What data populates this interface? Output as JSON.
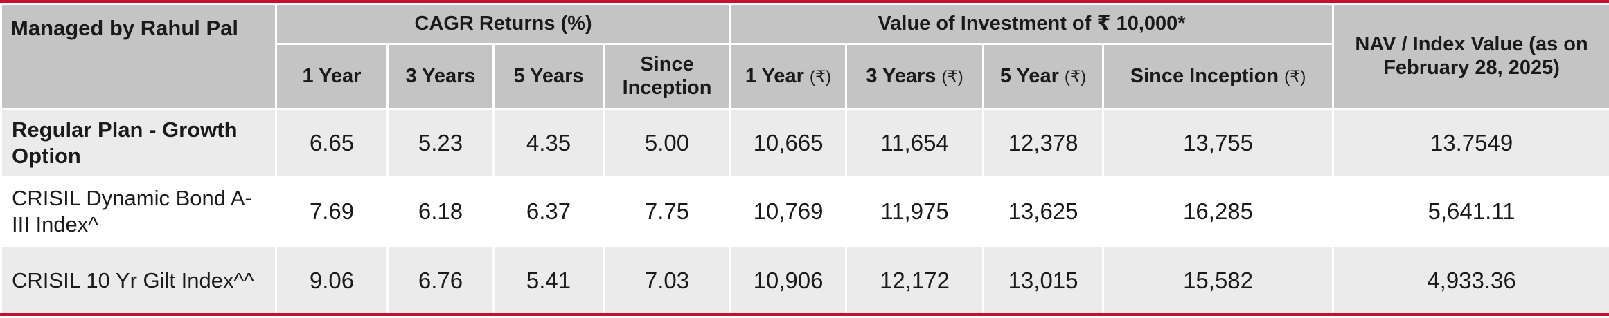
{
  "table": {
    "corner": "Managed by Rahul Pal",
    "group_cagr": "CAGR Returns (%)",
    "group_value": "Value of Investment of ₹ 10,000*",
    "nav_header": "NAV / Index Value (as on February 28, 2025)",
    "cagr_cols": [
      "1 Year",
      "3 Years",
      "5 Years",
      "Since Inception"
    ],
    "value_cols": [
      "1 Year",
      "3 Years",
      "5 Year",
      "Since Inception"
    ],
    "rupee_symbol": "(₹)",
    "rows": [
      {
        "label": "Regular Plan - Growth Option",
        "cagr": [
          "6.65",
          "5.23",
          "4.35",
          "5.00"
        ],
        "value": [
          "10,665",
          "11,654",
          "12,378",
          "13,755"
        ],
        "nav": "13.7549"
      },
      {
        "label": "CRISIL Dynamic Bond A-III Index^",
        "cagr": [
          "7.69",
          "6.18",
          "6.37",
          "7.75"
        ],
        "value": [
          "10,769",
          "11,975",
          "13,625",
          "16,285"
        ],
        "nav": "5,641.11"
      },
      {
        "label": "CRISIL 10 Yr Gilt Index^^",
        "cagr": [
          "9.06",
          "6.76",
          "5.41",
          "7.03"
        ],
        "value": [
          "10,906",
          "12,172",
          "13,015",
          "15,582"
        ],
        "nav": "4,933.36"
      }
    ]
  },
  "colors": {
    "accent": "#c8102e",
    "header_bg": "#c4c4c4",
    "row_shade": "#ebebeb"
  }
}
